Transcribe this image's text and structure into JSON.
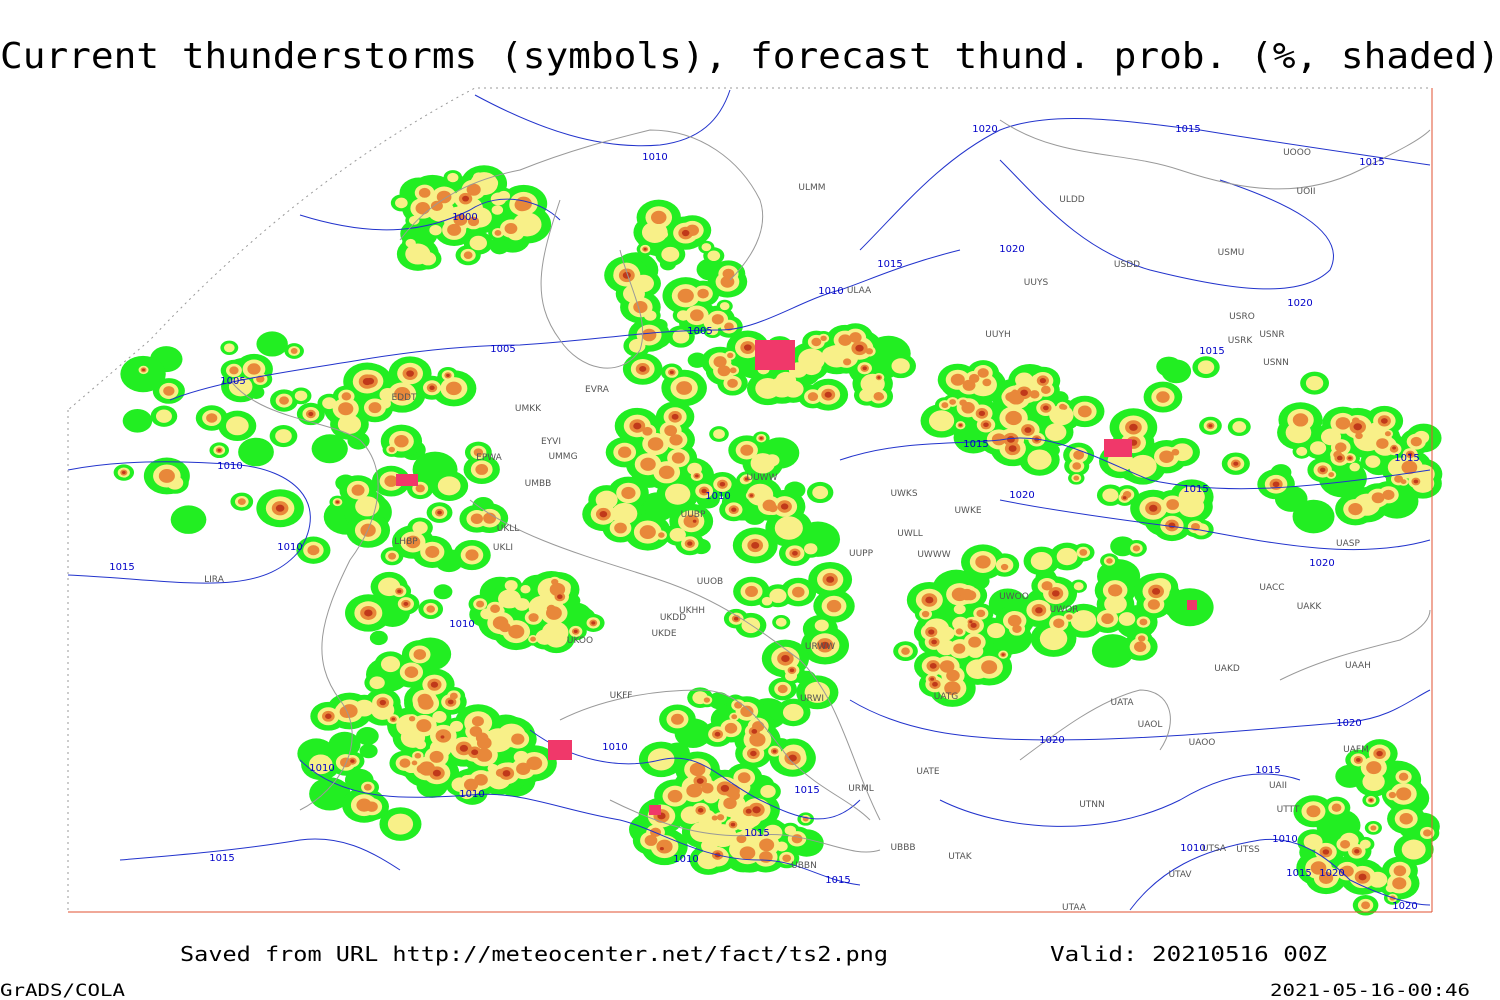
{
  "header": {
    "title": "Current thunderstorms (symbols), forecast thund. prob. (%, shaded)"
  },
  "isobar_labels": [
    "1010",
    "1000",
    "1005",
    "1005",
    "1005",
    "1010",
    "1010",
    "1015",
    "1010",
    "1010",
    "1010",
    "1010",
    "1015",
    "1010",
    "1015",
    "1015",
    "1015",
    "1010",
    "1010",
    "1015",
    "1020",
    "1015",
    "1015",
    "1020",
    "1020",
    "1015",
    "1015",
    "1020",
    "1015",
    "1015",
    "1020",
    "1020",
    "1020",
    "1015",
    "1010",
    "1010",
    "1015",
    "1020",
    "1020"
  ],
  "station_labels": [
    "ULMM",
    "ULDD",
    "UOOO",
    "UOII",
    "USDD",
    "USMU",
    "UUYS",
    "ULAA",
    "USRO",
    "USRK",
    "USNR",
    "UUYH",
    "USNN",
    "EVRA",
    "UMKK",
    "EYVI",
    "EPWA",
    "UMMG",
    "UMBB",
    "UUWW",
    "UWKS",
    "UWKE",
    "UKLL",
    "UKLI",
    "UUBP",
    "UWLL",
    "UWWW",
    "UUPP",
    "UASP",
    "UUOB",
    "UKHH",
    "UKDD",
    "UKDE",
    "UKOO",
    "UWOO",
    "UWOR",
    "UACC",
    "UAKK",
    "URWW",
    "UAKD",
    "UAAH",
    "URWI",
    "UATG",
    "UATA",
    "UAOL",
    "UKFF",
    "UAOO",
    "URML",
    "UATE",
    "UTNN",
    "UBBB",
    "UTAK",
    "UBBN",
    "UTAA",
    "UTSA",
    "UTSS",
    "UTAV",
    "UAFM",
    "UAII",
    "UTTT",
    "EDDT",
    "LIRA",
    "LHBP"
  ],
  "footer": {
    "source": "Saved from URL http://meteocenter.net/fact/ts2.png",
    "valid": "Valid: 20210516 00Z",
    "software": "GrADS/COLA",
    "timestamp": "2021-05-16-00:46"
  }
}
